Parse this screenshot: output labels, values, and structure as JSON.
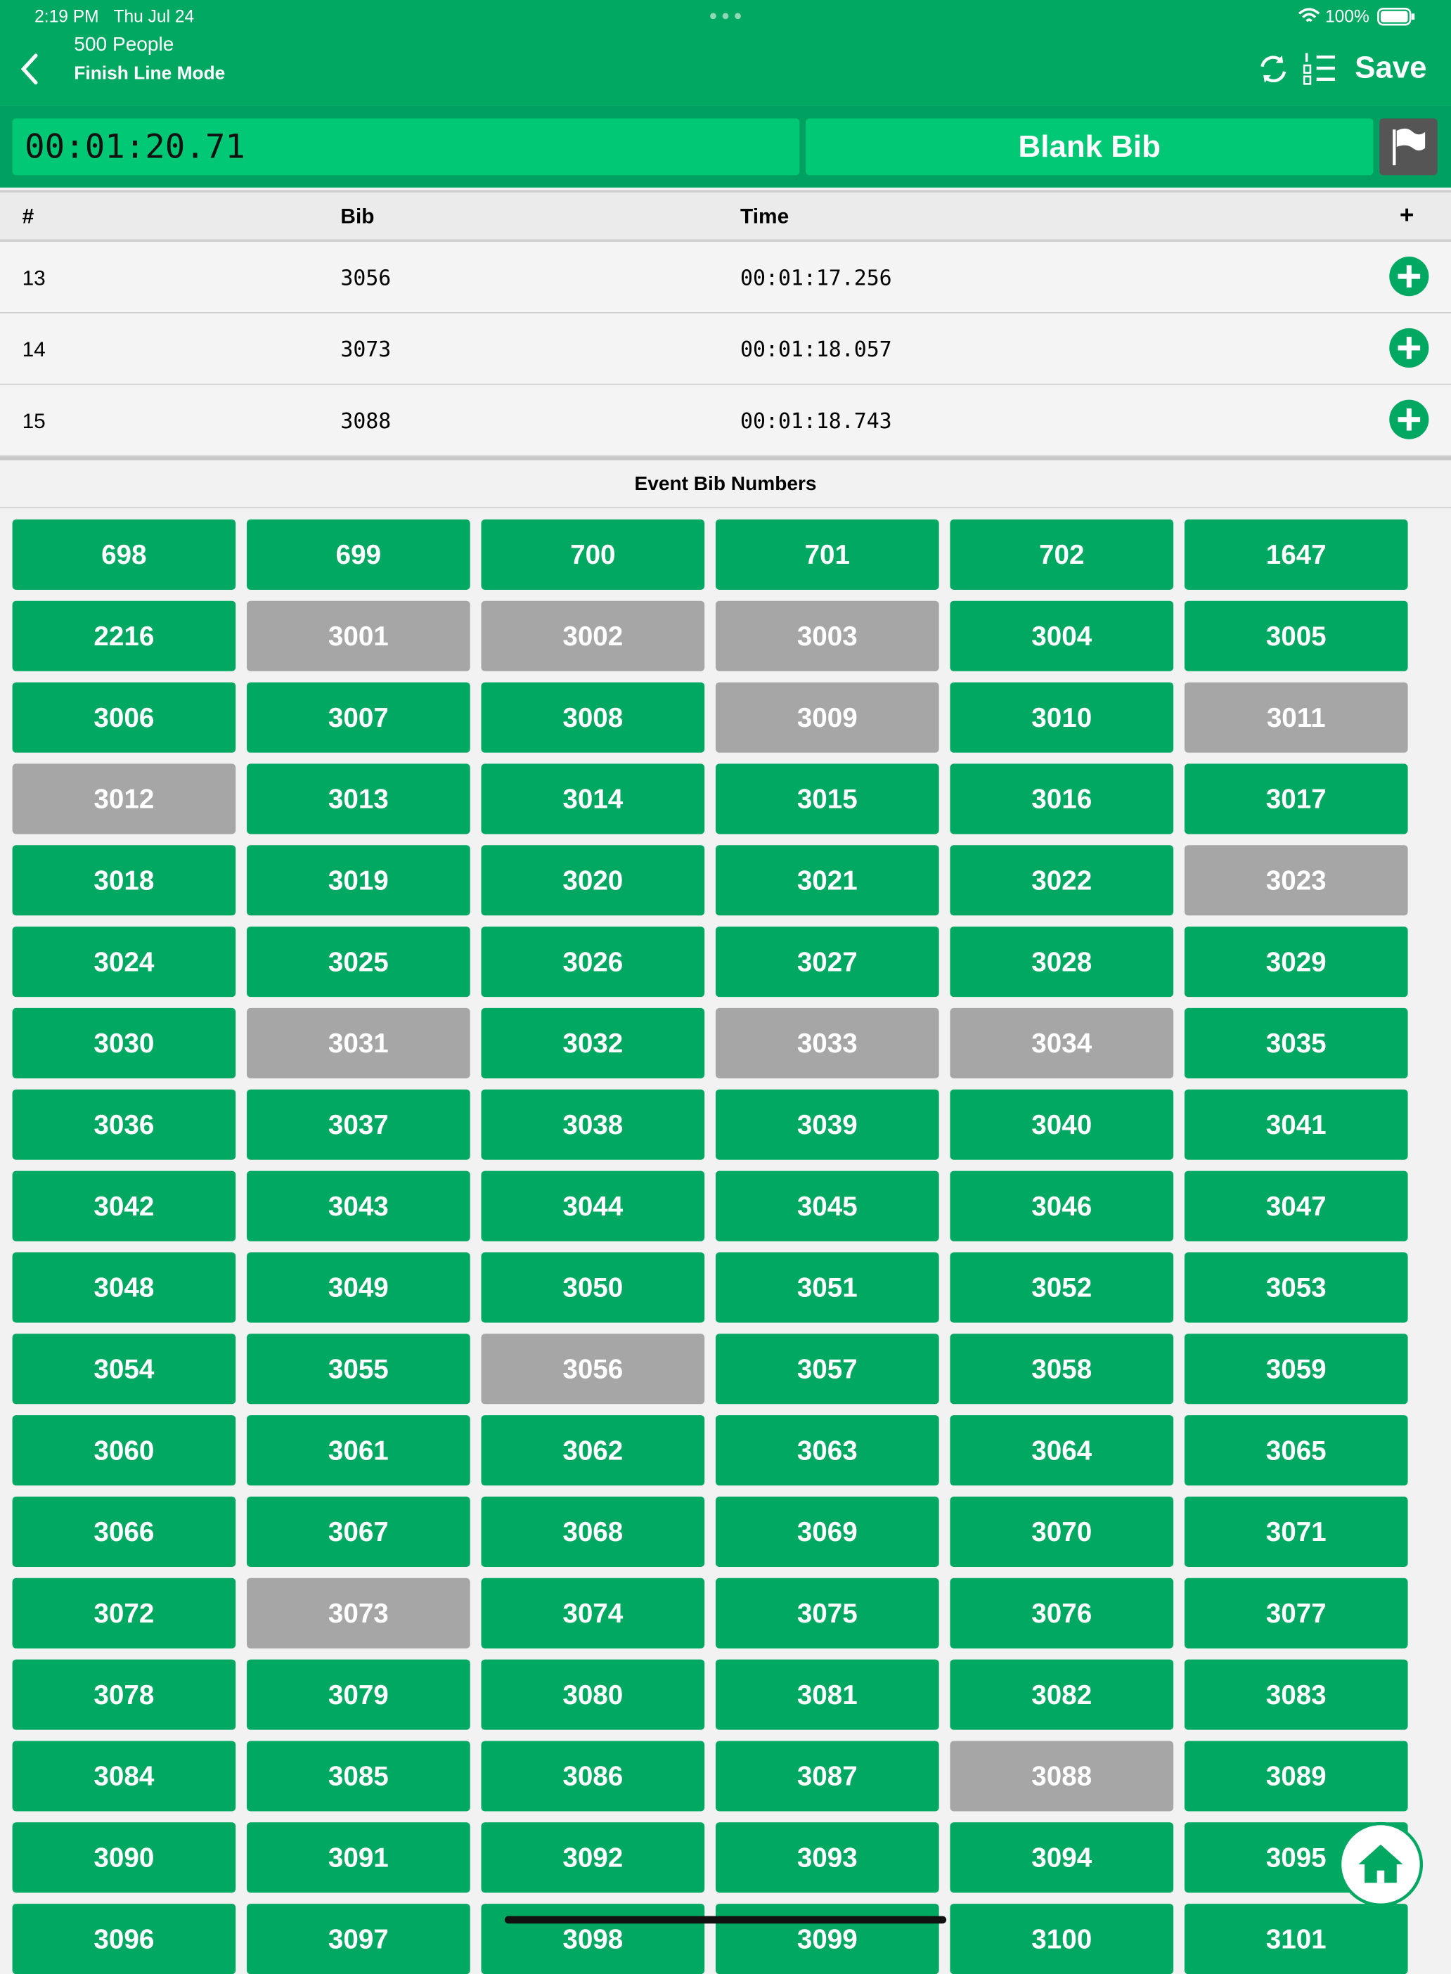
{
  "status_bar": {
    "time": "2:19 PM",
    "date": "Thu Jul 24",
    "battery": "100%"
  },
  "header": {
    "subtitle": "500 People",
    "title": "Finish Line Mode",
    "save": "Save"
  },
  "timer": {
    "elapsed": "00:01:20.71",
    "blank_bib": "Blank Bib"
  },
  "table": {
    "columns": [
      "#",
      "Bib",
      "Time",
      "+"
    ],
    "rows": [
      [
        "13",
        "3056",
        "00:01:17.256"
      ],
      [
        "14",
        "3073",
        "00:01:18.057"
      ],
      [
        "15",
        "3088",
        "00:01:18.743"
      ]
    ]
  },
  "bib_section": {
    "title": "Event Bib Numbers",
    "bibs": [
      {
        "label": "698",
        "recorded": false
      },
      {
        "label": "699",
        "recorded": false
      },
      {
        "label": "700",
        "recorded": false
      },
      {
        "label": "701",
        "recorded": false
      },
      {
        "label": "702",
        "recorded": false
      },
      {
        "label": "1647",
        "recorded": false
      },
      {
        "label": "2216",
        "recorded": false
      },
      {
        "label": "3001",
        "recorded": true
      },
      {
        "label": "3002",
        "recorded": true
      },
      {
        "label": "3003",
        "recorded": true
      },
      {
        "label": "3004",
        "recorded": false
      },
      {
        "label": "3005",
        "recorded": false
      },
      {
        "label": "3006",
        "recorded": false
      },
      {
        "label": "3007",
        "recorded": false
      },
      {
        "label": "3008",
        "recorded": false
      },
      {
        "label": "3009",
        "recorded": true
      },
      {
        "label": "3010",
        "recorded": false
      },
      {
        "label": "3011",
        "recorded": true
      },
      {
        "label": "3012",
        "recorded": true
      },
      {
        "label": "3013",
        "recorded": false
      },
      {
        "label": "3014",
        "recorded": false
      },
      {
        "label": "3015",
        "recorded": false
      },
      {
        "label": "3016",
        "recorded": false
      },
      {
        "label": "3017",
        "recorded": false
      },
      {
        "label": "3018",
        "recorded": false
      },
      {
        "label": "3019",
        "recorded": false
      },
      {
        "label": "3020",
        "recorded": false
      },
      {
        "label": "3021",
        "recorded": false
      },
      {
        "label": "3022",
        "recorded": false
      },
      {
        "label": "3023",
        "recorded": true
      },
      {
        "label": "3024",
        "recorded": false
      },
      {
        "label": "3025",
        "recorded": false
      },
      {
        "label": "3026",
        "recorded": false
      },
      {
        "label": "3027",
        "recorded": false
      },
      {
        "label": "3028",
        "recorded": false
      },
      {
        "label": "3029",
        "recorded": false
      },
      {
        "label": "3030",
        "recorded": false
      },
      {
        "label": "3031",
        "recorded": true
      },
      {
        "label": "3032",
        "recorded": false
      },
      {
        "label": "3033",
        "recorded": true
      },
      {
        "label": "3034",
        "recorded": true
      },
      {
        "label": "3035",
        "recorded": false
      },
      {
        "label": "3036",
        "recorded": false
      },
      {
        "label": "3037",
        "recorded": false
      },
      {
        "label": "3038",
        "recorded": false
      },
      {
        "label": "3039",
        "recorded": false
      },
      {
        "label": "3040",
        "recorded": false
      },
      {
        "label": "3041",
        "recorded": false
      },
      {
        "label": "3042",
        "recorded": false
      },
      {
        "label": "3043",
        "recorded": false
      },
      {
        "label": "3044",
        "recorded": false
      },
      {
        "label": "3045",
        "recorded": false
      },
      {
        "label": "3046",
        "recorded": false
      },
      {
        "label": "3047",
        "recorded": false
      },
      {
        "label": "3048",
        "recorded": false
      },
      {
        "label": "3049",
        "recorded": false
      },
      {
        "label": "3050",
        "recorded": false
      },
      {
        "label": "3051",
        "recorded": false
      },
      {
        "label": "3052",
        "recorded": false
      },
      {
        "label": "3053",
        "recorded": false
      },
      {
        "label": "3054",
        "recorded": false
      },
      {
        "label": "3055",
        "recorded": false
      },
      {
        "label": "3056",
        "recorded": true
      },
      {
        "label": "3057",
        "recorded": false
      },
      {
        "label": "3058",
        "recorded": false
      },
      {
        "label": "3059",
        "recorded": false
      },
      {
        "label": "3060",
        "recorded": false
      },
      {
        "label": "3061",
        "recorded": false
      },
      {
        "label": "3062",
        "recorded": false
      },
      {
        "label": "3063",
        "recorded": false
      },
      {
        "label": "3064",
        "recorded": false
      },
      {
        "label": "3065",
        "recorded": false
      },
      {
        "label": "3066",
        "recorded": false
      },
      {
        "label": "3067",
        "recorded": false
      },
      {
        "label": "3068",
        "recorded": false
      },
      {
        "label": "3069",
        "recorded": false
      },
      {
        "label": "3070",
        "recorded": false
      },
      {
        "label": "3071",
        "recorded": false
      },
      {
        "label": "3072",
        "recorded": false
      },
      {
        "label": "3073",
        "recorded": true
      },
      {
        "label": "3074",
        "recorded": false
      },
      {
        "label": "3075",
        "recorded": false
      },
      {
        "label": "3076",
        "recorded": false
      },
      {
        "label": "3077",
        "recorded": false
      },
      {
        "label": "3078",
        "recorded": false
      },
      {
        "label": "3079",
        "recorded": false
      },
      {
        "label": "3080",
        "recorded": false
      },
      {
        "label": "3081",
        "recorded": false
      },
      {
        "label": "3082",
        "recorded": false
      },
      {
        "label": "3083",
        "recorded": false
      },
      {
        "label": "3084",
        "recorded": false
      },
      {
        "label": "3085",
        "recorded": false
      },
      {
        "label": "3086",
        "recorded": false
      },
      {
        "label": "3087",
        "recorded": false
      },
      {
        "label": "3088",
        "recorded": true
      },
      {
        "label": "3089",
        "recorded": false
      },
      {
        "label": "3090",
        "recorded": false
      },
      {
        "label": "3091",
        "recorded": false
      },
      {
        "label": "3092",
        "recorded": false
      },
      {
        "label": "3093",
        "recorded": false
      },
      {
        "label": "3094",
        "recorded": false
      },
      {
        "label": "3095",
        "recorded": false
      },
      {
        "label": "3096",
        "recorded": false
      },
      {
        "label": "3097",
        "recorded": false
      },
      {
        "label": "3098",
        "recorded": false
      },
      {
        "label": "3099",
        "recorded": false
      },
      {
        "label": "3100",
        "recorded": false
      },
      {
        "label": "3101",
        "recorded": false
      }
    ]
  }
}
